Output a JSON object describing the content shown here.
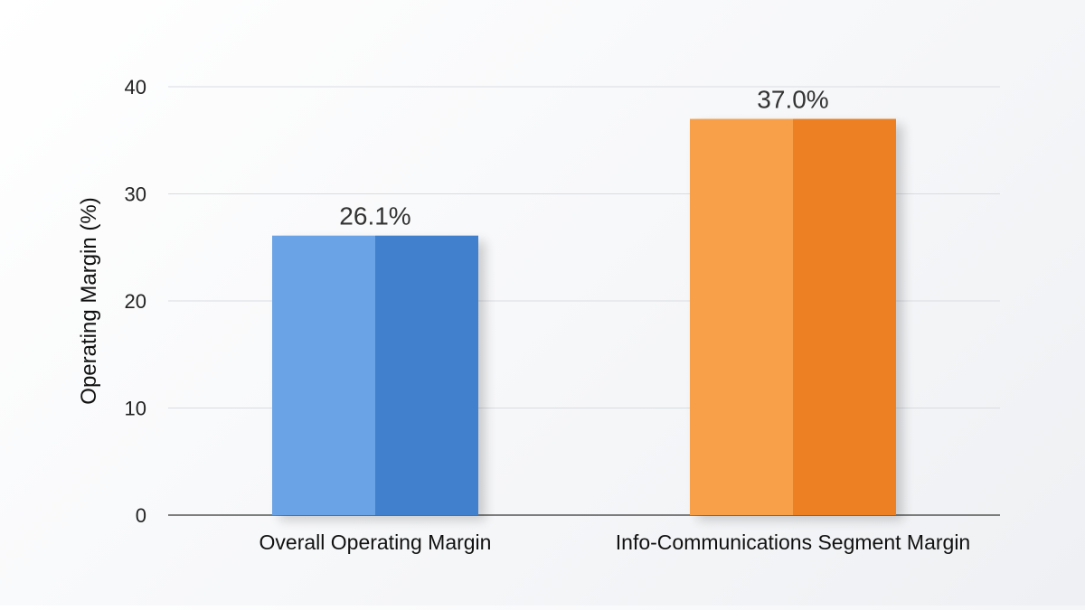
{
  "chart_data": {
    "type": "bar",
    "title": "",
    "xlabel": "",
    "ylabel": "Operating Margin (%)",
    "ylim": [
      0,
      40
    ],
    "yticks": [
      0,
      10,
      20,
      30,
      40
    ],
    "grid": true,
    "categories": [
      "Overall Operating Margin",
      "Info-Communications Segment Margin"
    ],
    "values": [
      26.1,
      37.0
    ],
    "data_labels": [
      "26.1%",
      "37.0%"
    ],
    "colors": [
      "#4a8bd6",
      "#f18a2a"
    ],
    "colors_light": [
      "#6aa3e6",
      "#f7a04a"
    ],
    "colors_dark": [
      "#3f80cc",
      "#ec8020"
    ]
  }
}
